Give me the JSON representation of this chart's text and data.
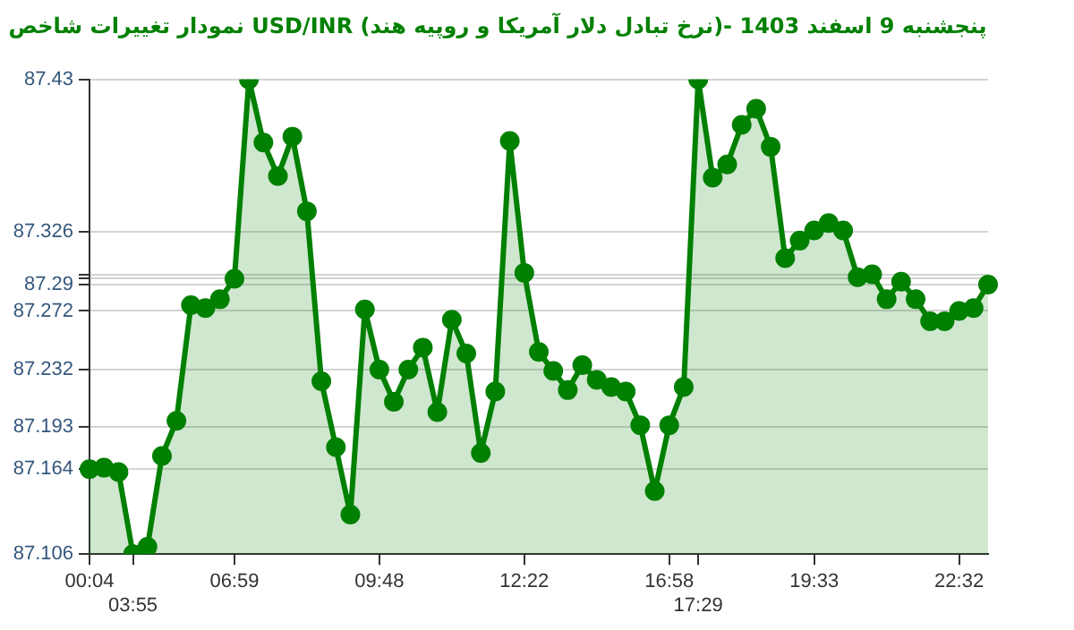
{
  "chart_data": {
    "type": "area",
    "title": "نمودار تغییرات شاخص USD/INR (نرخ تبادل دلار آمریکا و روپیه هند)- پنجشنبه 9 اسفند 1403",
    "categories": [
      "00:04",
      null,
      null,
      "03:55",
      null,
      null,
      null,
      null,
      null,
      null,
      "06:59",
      null,
      null,
      null,
      null,
      null,
      null,
      null,
      null,
      null,
      "09:48",
      null,
      null,
      null,
      null,
      null,
      null,
      null,
      null,
      null,
      "12:22",
      null,
      null,
      null,
      null,
      null,
      null,
      null,
      null,
      null,
      "16:58",
      null,
      "17:29",
      null,
      null,
      null,
      null,
      null,
      null,
      null,
      "19:33",
      null,
      null,
      null,
      null,
      null,
      null,
      null,
      null,
      null,
      "22:32",
      null,
      null
    ],
    "series": [
      {
        "color": "#008000",
        "values": [
          87.164,
          87.165,
          87.162,
          87.106,
          87.111,
          87.173,
          87.197,
          87.276,
          87.274,
          87.28,
          87.294,
          87.43,
          87.387,
          87.364,
          87.391,
          87.34,
          87.224,
          87.179,
          87.133,
          87.273,
          87.232,
          87.21,
          87.232,
          87.247,
          87.203,
          87.266,
          87.243,
          87.175,
          87.217,
          87.388,
          87.298,
          87.244,
          87.231,
          87.218,
          87.235,
          87.225,
          87.22,
          87.217,
          87.194,
          87.149,
          87.194,
          87.22,
          87.43,
          87.363,
          87.372,
          87.399,
          87.41,
          87.384,
          87.308,
          87.32,
          87.327,
          87.332,
          87.327,
          87.295,
          87.297,
          87.28,
          87.292,
          87.28,
          87.265,
          87.265,
          87.272,
          87.274,
          87.29
        ]
      }
    ],
    "ylim": [
      87.106,
      87.43
    ],
    "yticks": [
      87.106,
      87.164,
      87.193,
      87.232,
      87.272,
      87.29,
      {
        "value": 87.294,
        "label": null
      },
      {
        "value": 87.297,
        "label": null
      },
      87.326,
      87.43
    ],
    "grid": "y",
    "marker": "circle",
    "legend": false
  }
}
